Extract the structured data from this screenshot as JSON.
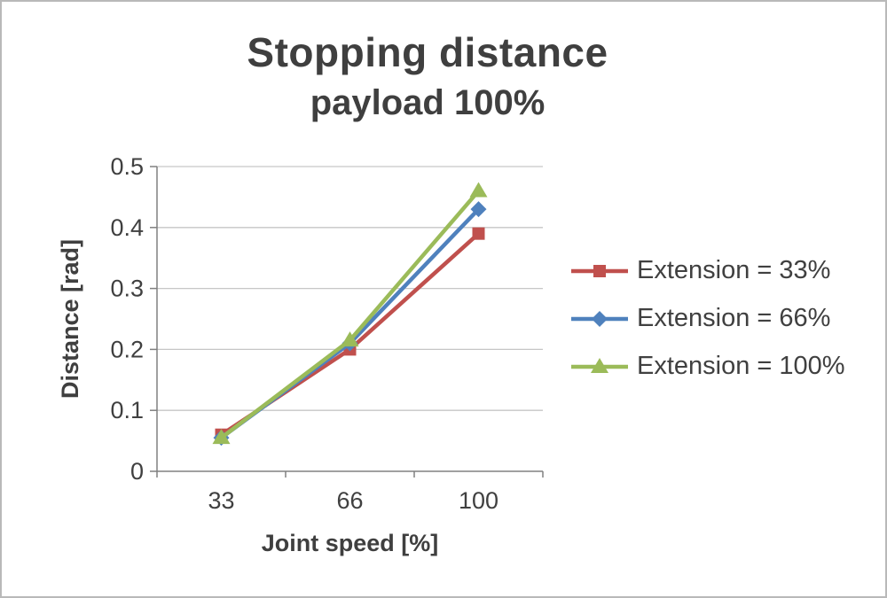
{
  "chart_data": {
    "type": "line",
    "title": "Stopping distance",
    "subtitle": "payload 100%",
    "xlabel": "Joint speed [%]",
    "ylabel": "Distance [rad]",
    "categories": [
      33,
      66,
      100
    ],
    "x_tick_labels": [
      "33",
      "66",
      "100"
    ],
    "y_ticks": [
      0,
      0.1,
      0.2,
      0.3,
      0.4,
      0.5
    ],
    "y_tick_labels": [
      "0",
      "0.1",
      "0.2",
      "0.3",
      "0.4",
      "0.5"
    ],
    "ylim": [
      0,
      0.5
    ],
    "grid": true,
    "legend_position": "right",
    "series": [
      {
        "name": "Extension = 33%",
        "color": "#c0504d",
        "marker": "square",
        "values": [
          0.06,
          0.2,
          0.39
        ]
      },
      {
        "name": "Extension = 66%",
        "color": "#4f81bd",
        "marker": "diamond",
        "values": [
          0.055,
          0.21,
          0.43
        ]
      },
      {
        "name": "Extension = 100%",
        "color": "#9bbb59",
        "marker": "triangle",
        "values": [
          0.055,
          0.215,
          0.46
        ]
      }
    ],
    "colors": {
      "gridline": "#c6c6c6",
      "axis": "#808080",
      "text": "#404040",
      "title": "#3f3f3f"
    }
  }
}
